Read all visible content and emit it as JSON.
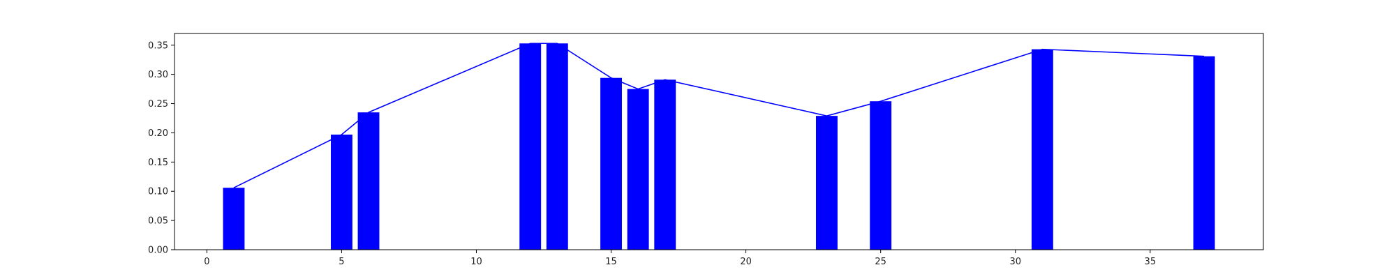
{
  "chart_data": {
    "type": "bar",
    "title": "",
    "xlabel": "",
    "ylabel": "",
    "xlim": [
      -1.2,
      39.2
    ],
    "ylim": [
      0,
      0.37
    ],
    "xticks": [
      0,
      5,
      10,
      15,
      20,
      25,
      30,
      35
    ],
    "yticks": [
      0.0,
      0.05,
      0.1,
      0.15,
      0.2,
      0.25,
      0.3,
      0.35
    ],
    "ytick_labels": [
      "0.00",
      "0.05",
      "0.10",
      "0.15",
      "0.20",
      "0.25",
      "0.30",
      "0.35"
    ],
    "grid": false,
    "legend": "none",
    "color": "#0000ff",
    "bar_width": 0.8,
    "series": [
      {
        "type": "bar",
        "x": [
          1,
          5,
          6,
          12,
          13,
          15,
          16,
          17,
          23,
          25,
          31,
          37
        ],
        "values": [
          0.106,
          0.197,
          0.235,
          0.353,
          0.353,
          0.294,
          0.275,
          0.291,
          0.229,
          0.254,
          0.343,
          0.331
        ]
      },
      {
        "type": "line",
        "x": [
          1,
          5,
          6,
          12,
          13,
          15,
          16,
          17,
          23,
          25,
          31,
          37
        ],
        "values": [
          0.106,
          0.197,
          0.235,
          0.353,
          0.353,
          0.294,
          0.275,
          0.291,
          0.229,
          0.254,
          0.343,
          0.331
        ]
      }
    ]
  }
}
